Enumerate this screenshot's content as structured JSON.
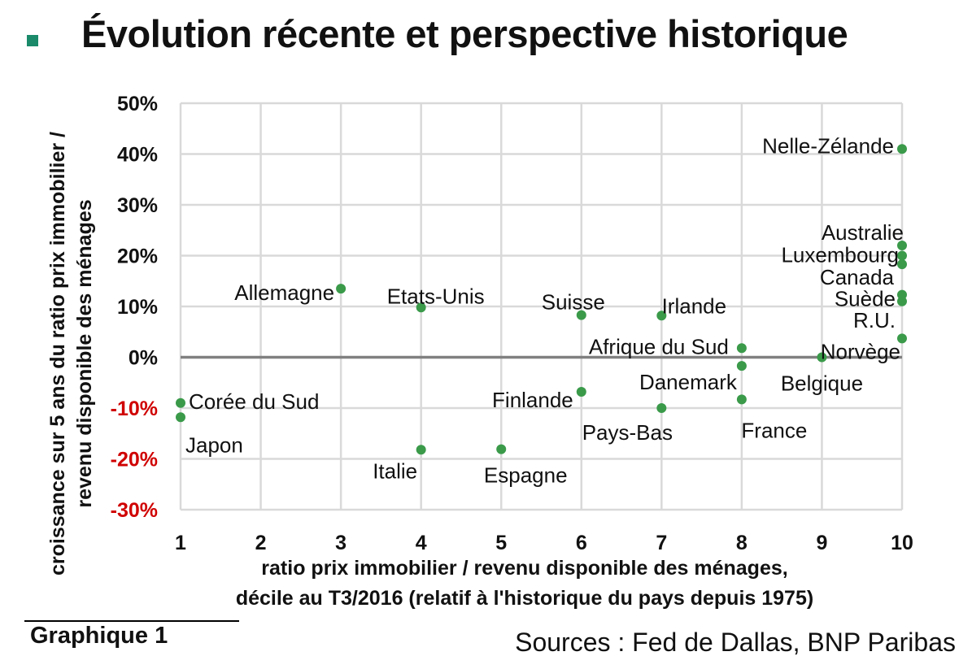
{
  "title": "Évolution récente et perspective historique",
  "colors": {
    "accent": "#1a8a6a",
    "point": "#3a9a4a",
    "grid": "#d9d9d9",
    "zero_line": "#808080",
    "negative_tick": "#d00000"
  },
  "footer": {
    "chart_label": "Graphique 1",
    "sources": "Sources : Fed de Dallas, BNP Paribas"
  },
  "chart_data": {
    "type": "scatter",
    "title": "",
    "xlabel": [
      "ratio prix immobilier / revenu disponible des ménages,",
      "décile au T3/2016  (relatif à l'historique du pays depuis 1975)"
    ],
    "ylabel": [
      "croissance sur 5 ans du ratio prix immobilier /",
      "revenu disponible des ménages"
    ],
    "xlim": [
      1,
      10
    ],
    "ylim": [
      -30,
      50
    ],
    "x_ticks": [
      1,
      2,
      3,
      4,
      5,
      6,
      7,
      8,
      9,
      10
    ],
    "x_tick_labels": [
      "1",
      "2",
      "3",
      "4",
      "5",
      "6",
      "7",
      "8",
      "9",
      "10"
    ],
    "y_ticks": [
      50,
      40,
      30,
      20,
      10,
      0,
      -10,
      -20,
      -30
    ],
    "y_tick_labels": [
      "50%",
      "40%",
      "30%",
      "20%",
      "10%",
      "0%",
      "-10%",
      "-20%",
      "-30%"
    ],
    "grid": true,
    "legend": "none",
    "points": [
      {
        "label": "Nelle-Zélande",
        "x": 10,
        "y": 41,
        "anchor": "end",
        "dx": -10,
        "dy": -4
      },
      {
        "label": "Australie",
        "x": 10,
        "y": 22,
        "anchor": "end",
        "dx": 2,
        "dy": -16
      },
      {
        "label": "Luxembourg",
        "x": 10,
        "y": 20,
        "anchor": "end",
        "dx": -4,
        "dy": -1
      },
      {
        "label": "Canada",
        "x": 10,
        "y": 18.3,
        "anchor": "end",
        "dx": -10,
        "dy": 16
      },
      {
        "label": "Suède",
        "x": 10,
        "y": 12.3,
        "anchor": "end",
        "dx": -8,
        "dy": 5
      },
      {
        "label": "R.U.",
        "x": 10,
        "y": 11,
        "anchor": "end",
        "dx": -8,
        "dy": 23
      },
      {
        "label": "Norvège",
        "x": 10,
        "y": 3.7,
        "anchor": "end",
        "dx": -2,
        "dy": 16
      },
      {
        "label": "Allemagne",
        "x": 3,
        "y": 13.5,
        "anchor": "end",
        "dx": -8,
        "dy": 5
      },
      {
        "label": "Etats-Unis",
        "x": 4,
        "y": 9.8,
        "anchor": "middle",
        "dx": 18,
        "dy": -14
      },
      {
        "label": "Suisse",
        "x": 6,
        "y": 8.3,
        "anchor": "middle",
        "dx": -10,
        "dy": -16
      },
      {
        "label": "Irlande",
        "x": 7,
        "y": 8.2,
        "anchor": "middle",
        "dx": 40,
        "dy": -12
      },
      {
        "label": "Afrique du Sud",
        "x": 8,
        "y": 1.8,
        "anchor": "end",
        "dx": -16,
        "dy": -2
      },
      {
        "label": "Danemark",
        "x": 8,
        "y": -1.7,
        "anchor": "end",
        "dx": -6,
        "dy": 20
      },
      {
        "label": "Belgique",
        "x": 9,
        "y": 0,
        "anchor": "middle",
        "dx": 0,
        "dy": 32
      },
      {
        "label": "France",
        "x": 8,
        "y": -8.3,
        "anchor": "middle",
        "dx": 40,
        "dy": 38
      },
      {
        "label": "Finlande",
        "x": 6,
        "y": -6.8,
        "anchor": "end",
        "dx": -10,
        "dy": 10
      },
      {
        "label": "Pays-Bas",
        "x": 7,
        "y": -10,
        "anchor": "middle",
        "dx": -42,
        "dy": 30
      },
      {
        "label": "Corée du Sud",
        "x": 1,
        "y": -9,
        "anchor": "start",
        "dx": 10,
        "dy": -2
      },
      {
        "label": "Japon",
        "x": 1,
        "y": -11.8,
        "anchor": "start",
        "dx": 6,
        "dy": 34
      },
      {
        "label": "Italie",
        "x": 4,
        "y": -18.2,
        "anchor": "middle",
        "dx": -32,
        "dy": 26
      },
      {
        "label": "Espagne",
        "x": 5,
        "y": -18.1,
        "anchor": "middle",
        "dx": 30,
        "dy": 32
      }
    ]
  }
}
